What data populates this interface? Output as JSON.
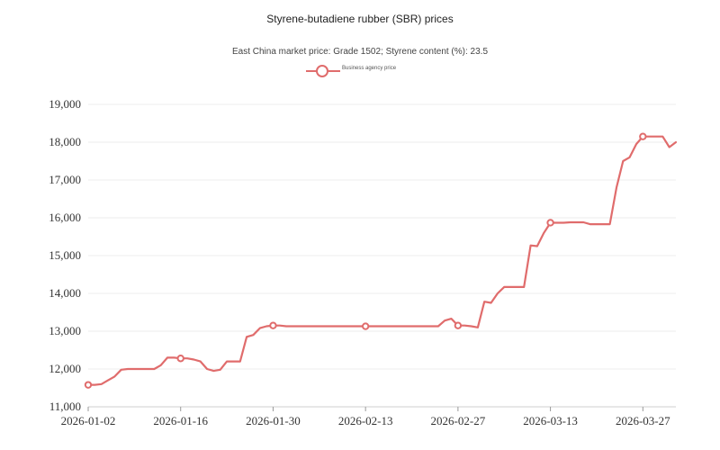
{
  "chart_data": {
    "type": "line",
    "title": "Styrene-butadiene rubber (SBR) prices",
    "subtitle": "East China market price: Grade 1502; Styrene content (%): 23.5",
    "xlabel": "",
    "ylabel": "",
    "ylim": [
      11000,
      19000
    ],
    "yticks": [
      11000,
      12000,
      13000,
      14000,
      15000,
      16000,
      17000,
      18000,
      19000
    ],
    "ytick_labels": [
      "11,000",
      "12,000",
      "13,000",
      "14,000",
      "15,000",
      "16,000",
      "17,000",
      "18,000",
      "19,000"
    ],
    "xlim": [
      "2026-01-02",
      "2026-04-01"
    ],
    "xticks": [
      "2026-01-02",
      "2026-01-16",
      "2026-01-30",
      "2026-02-13",
      "2026-02-27",
      "2026-03-13",
      "2026-03-27"
    ],
    "grid": "horizontal",
    "legend_position": "top-center",
    "series": [
      {
        "name": "Business agency price",
        "color": "#e06c6c",
        "markers": [
          "2026-01-02",
          "2026-01-16",
          "2026-01-30",
          "2026-02-13",
          "2026-02-27",
          "2026-03-13",
          "2026-03-27"
        ],
        "points": [
          [
            "2026-01-02",
            11580
          ],
          [
            "2026-01-03",
            11580
          ],
          [
            "2026-01-04",
            11600
          ],
          [
            "2026-01-05",
            11700
          ],
          [
            "2026-01-06",
            11800
          ],
          [
            "2026-01-07",
            11980
          ],
          [
            "2026-01-08",
            12000
          ],
          [
            "2026-01-09",
            12000
          ],
          [
            "2026-01-10",
            12000
          ],
          [
            "2026-01-11",
            12000
          ],
          [
            "2026-01-12",
            12000
          ],
          [
            "2026-01-13",
            12100
          ],
          [
            "2026-01-14",
            12300
          ],
          [
            "2026-01-15",
            12300
          ],
          [
            "2026-01-16",
            12280
          ],
          [
            "2026-01-17",
            12280
          ],
          [
            "2026-01-18",
            12250
          ],
          [
            "2026-01-19",
            12200
          ],
          [
            "2026-01-20",
            12000
          ],
          [
            "2026-01-21",
            11950
          ],
          [
            "2026-01-22",
            11980
          ],
          [
            "2026-01-23",
            12200
          ],
          [
            "2026-01-24",
            12200
          ],
          [
            "2026-01-25",
            12200
          ],
          [
            "2026-01-26",
            12850
          ],
          [
            "2026-01-27",
            12900
          ],
          [
            "2026-01-28",
            13080
          ],
          [
            "2026-01-29",
            13130
          ],
          [
            "2026-01-30",
            13150
          ],
          [
            "2026-01-31",
            13150
          ],
          [
            "2026-02-01",
            13130
          ],
          [
            "2026-02-02",
            13130
          ],
          [
            "2026-02-03",
            13130
          ],
          [
            "2026-02-05",
            13130
          ],
          [
            "2026-02-09",
            13130
          ],
          [
            "2026-02-13",
            13130
          ],
          [
            "2026-02-17",
            13130
          ],
          [
            "2026-02-21",
            13130
          ],
          [
            "2026-02-24",
            13130
          ],
          [
            "2026-02-25",
            13280
          ],
          [
            "2026-02-26",
            13330
          ],
          [
            "2026-02-27",
            13150
          ],
          [
            "2026-02-28",
            13150
          ],
          [
            "2026-03-01",
            13130
          ],
          [
            "2026-03-02",
            13100
          ],
          [
            "2026-03-03",
            13780
          ],
          [
            "2026-03-04",
            13750
          ],
          [
            "2026-03-05",
            14000
          ],
          [
            "2026-03-06",
            14170
          ],
          [
            "2026-03-07",
            14170
          ],
          [
            "2026-03-08",
            14170
          ],
          [
            "2026-03-09",
            14170
          ],
          [
            "2026-03-10",
            15270
          ],
          [
            "2026-03-11",
            15250
          ],
          [
            "2026-03-12",
            15600
          ],
          [
            "2026-03-13",
            15870
          ],
          [
            "2026-03-14",
            15870
          ],
          [
            "2026-03-15",
            15870
          ],
          [
            "2026-03-16",
            15880
          ],
          [
            "2026-03-17",
            15880
          ],
          [
            "2026-03-18",
            15880
          ],
          [
            "2026-03-19",
            15830
          ],
          [
            "2026-03-20",
            15830
          ],
          [
            "2026-03-21",
            15830
          ],
          [
            "2026-03-22",
            15830
          ],
          [
            "2026-03-23",
            16800
          ],
          [
            "2026-03-24",
            17500
          ],
          [
            "2026-03-25",
            17600
          ],
          [
            "2026-03-26",
            17950
          ],
          [
            "2026-03-27",
            18150
          ],
          [
            "2026-03-28",
            18150
          ],
          [
            "2026-03-29",
            18150
          ],
          [
            "2026-03-30",
            18150
          ],
          [
            "2026-03-31",
            17870
          ],
          [
            "2026-04-01",
            18000
          ]
        ]
      }
    ]
  }
}
